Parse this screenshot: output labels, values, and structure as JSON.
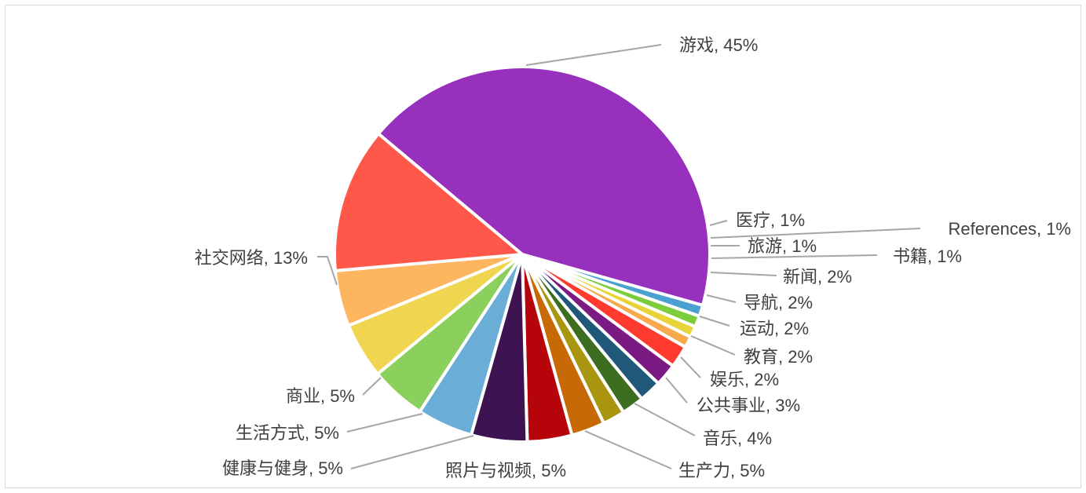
{
  "chart_data": {
    "type": "pie",
    "title": "",
    "label_format": "name_percent",
    "slices": [
      {
        "name": "游戏",
        "label": "游戏, 45%",
        "value": 45,
        "color": "#9630bd"
      },
      {
        "name": "医疗",
        "label": "医疗, 1%",
        "value": 1,
        "color": "#4aa0d0"
      },
      {
        "name": "References",
        "label": "References, 1%",
        "value": 1,
        "color": "#7ccc3c"
      },
      {
        "name": "旅游",
        "label": "旅游, 1%",
        "value": 1,
        "color": "#e8d43a"
      },
      {
        "name": "书籍",
        "label": "书籍, 1%",
        "value": 1,
        "color": "#f7a94b"
      },
      {
        "name": "新闻",
        "label": "新闻, 2%",
        "value": 2,
        "color": "#ff3a2e"
      },
      {
        "name": "导航",
        "label": "导航, 2%",
        "value": 2,
        "color": "#7a1a82"
      },
      {
        "name": "运动",
        "label": "运动, 2%",
        "value": 2,
        "color": "#1f5878"
      },
      {
        "name": "教育",
        "label": "教育, 2%",
        "value": 2,
        "color": "#3d6e20"
      },
      {
        "name": "娱乐",
        "label": "娱乐, 2%",
        "value": 2,
        "color": "#a99510"
      },
      {
        "name": "公共事业",
        "label": "公共事业, 3%",
        "value": 3,
        "color": "#c76a05"
      },
      {
        "name": "音乐",
        "label": "音乐, 4%",
        "value": 4,
        "color": "#b5050a"
      },
      {
        "name": "生产力",
        "label": "生产力, 5%",
        "value": 5,
        "color": "#3e1352"
      },
      {
        "name": "照片与视频",
        "label": "照片与视频, 5%",
        "value": 5,
        "color": "#6aaed8"
      },
      {
        "name": "健康与健身",
        "label": "健康与健身, 5%",
        "value": 5,
        "color": "#8bd05c"
      },
      {
        "name": "生活方式",
        "label": "生活方式, 5%",
        "value": 5,
        "color": "#f0d650"
      },
      {
        "name": "商业",
        "label": "商业, 5%",
        "value": 5,
        "color": "#fdb560"
      },
      {
        "name": "社交网络",
        "label": "社交网络, 13%",
        "value": 13,
        "color": "#ff574a"
      }
    ]
  }
}
